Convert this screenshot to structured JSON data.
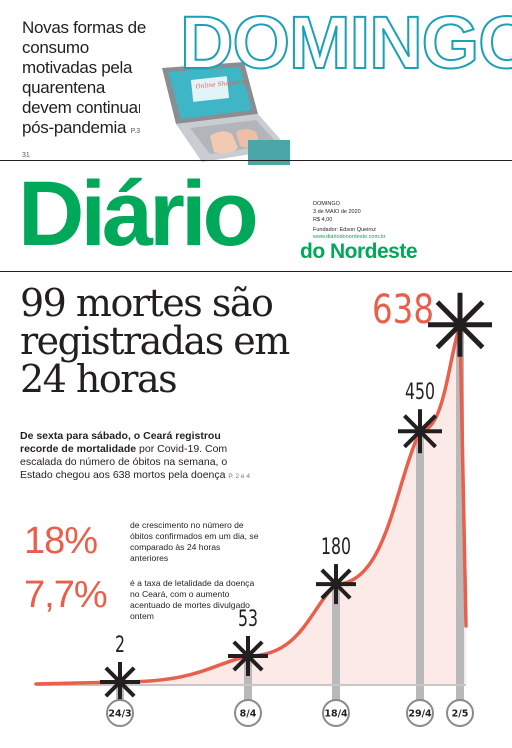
{
  "teaser": {
    "text": "Novas formas de consumo motivadas pela quarentena devem continuar pós-pandemia",
    "page_ref": "P.3 e 31",
    "section_title": "DOMINGO",
    "photo_screen_text": "Online Shopping"
  },
  "masthead": {
    "title": "Diário",
    "subtitle": "do Nordeste",
    "edition_line_1": "DOMINGO",
    "edition_line_2": "3 de MAIO de 2020",
    "price": "R$ 4,00",
    "founder": "Fundador: Edson Queiroz",
    "url": "www.diariodonordeste.com.br"
  },
  "headline": "99 mortes são registradas em 24 horas",
  "lead": {
    "bold": "De sexta para sábado, o Ceará registrou recorde de mortalidade",
    "text": "por Covid-19. Com escalada do número de óbitos na semana, o Estado chegou aos 638 mortos pela doença",
    "page_ref": "P. 2 e 4"
  },
  "stats": [
    {
      "value": "18%",
      "desc": "de crescimento no número de óbitos confirmados em um dia, se comparado às 24 horas anteriores"
    },
    {
      "value": "7,7%",
      "desc": "é a taxa de letalidade da doença no Ceará, com o aumento acentuado de mortes divulgado ontem"
    }
  ],
  "colors": {
    "accent": "#e8604b",
    "brand": "#00a859",
    "teal": "#1aa1b5",
    "marker": "#231f20"
  },
  "chart_data": {
    "type": "area",
    "x": [
      "24/3",
      "8/4",
      "18/4",
      "29/4",
      "2/5"
    ],
    "values": [
      2,
      53,
      180,
      450,
      638
    ],
    "labels": [
      "2",
      "53",
      "180",
      "450",
      "638"
    ],
    "ylim": [
      0,
      650
    ],
    "marker": "asterisk"
  }
}
